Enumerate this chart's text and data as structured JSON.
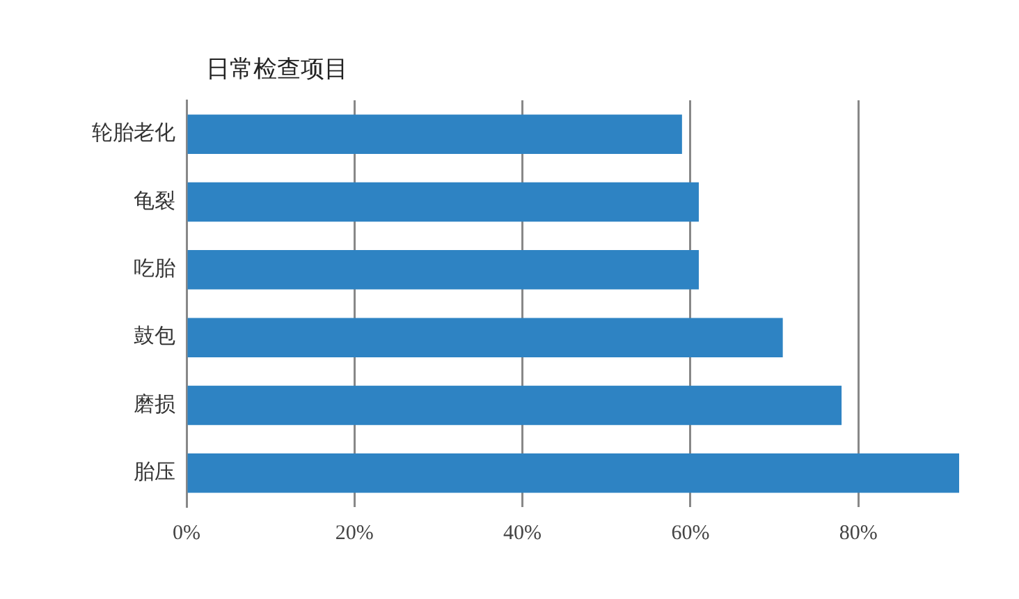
{
  "chart_data": {
    "type": "bar",
    "orientation": "horizontal",
    "title": "日常检查项目",
    "categories": [
      "轮胎老化",
      "龟裂",
      "吃胎",
      "鼓包",
      "磨损",
      "胎压"
    ],
    "values": [
      59,
      61,
      61,
      71,
      78,
      92
    ],
    "color": "#2e83c3",
    "xlim": [
      0,
      92
    ],
    "xticks": [
      {
        "value": 0,
        "label": "0%"
      },
      {
        "value": 20,
        "label": "20%"
      },
      {
        "value": 40,
        "label": "40%"
      },
      {
        "value": 60,
        "label": "60%"
      },
      {
        "value": 80,
        "label": "80%"
      }
    ],
    "grid": "x",
    "legend": false
  }
}
